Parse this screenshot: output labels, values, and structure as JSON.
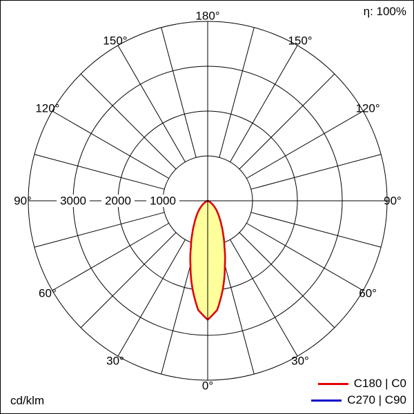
{
  "chart_data": {
    "type": "polar",
    "unit": "cd/klm",
    "efficiency": "η: 100%",
    "axis": {
      "degree_suffix": "°",
      "angle_labels_deg": [
        0,
        30,
        60,
        90,
        120,
        150,
        180
      ],
      "spoke_step_deg": 15,
      "ring_values_labeled": [
        1000,
        2000,
        3000
      ],
      "rings_all": [
        1000,
        2000,
        3000,
        4000
      ],
      "max_value": 4000
    },
    "series": [
      {
        "name": "C180 | C0",
        "color": "#e60000",
        "fill": "#ffff9c",
        "gamma_deg": [
          0,
          5,
          10,
          15,
          20,
          25,
          30,
          35,
          40,
          45,
          50,
          55,
          60,
          65,
          70,
          75
        ],
        "values_cd_per_klm": [
          2650,
          2440,
          1970,
          1480,
          1090,
          810,
          600,
          450,
          340,
          250,
          170,
          110,
          60,
          25,
          5,
          0
        ]
      },
      {
        "name": "C270 | C90",
        "color": "#0000cc",
        "fill": "none",
        "gamma_deg": [
          0,
          5,
          10,
          15,
          20,
          25,
          30,
          35,
          40,
          45,
          50,
          55,
          60,
          65,
          70,
          75
        ],
        "values_cd_per_klm": [
          2650,
          2440,
          1970,
          1480,
          1090,
          810,
          600,
          450,
          340,
          250,
          170,
          110,
          60,
          25,
          5,
          0
        ]
      }
    ]
  },
  "style": {
    "grid_color": "#000000",
    "background": "#ffffff",
    "label_background": "#ffffff"
  }
}
